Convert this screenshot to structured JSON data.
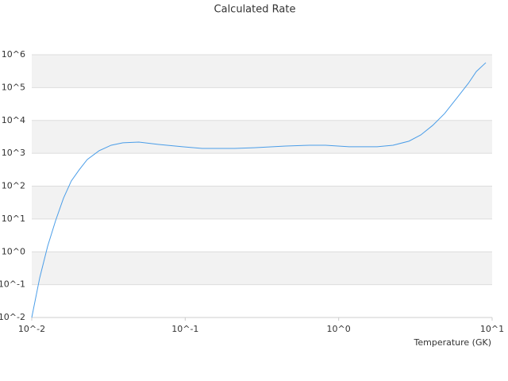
{
  "chart_data": {
    "type": "line",
    "title": "Calculated Rate",
    "x_label": "Temperature (GK)",
    "x": [
      0.01,
      0.01127,
      0.0127,
      0.0143,
      0.0161,
      0.0181,
      0.0204,
      0.023,
      0.0275,
      0.0329,
      0.0393,
      0.0499,
      0.0673,
      0.0962,
      0.129,
      0.209,
      0.281,
      0.452,
      0.647,
      0.821,
      1.17,
      1.78,
      2.26,
      2.87,
      3.43,
      4.1,
      4.9,
      5.86,
      7.0,
      7.89,
      9.1
    ],
    "values": [
      0.01,
      0.162,
      1.5,
      8.9,
      43,
      144,
      316,
      646,
      1200,
      1760,
      2090,
      2190,
      1860,
      1580,
      1410,
      1410,
      1480,
      1660,
      1760,
      1760,
      1580,
      1580,
      1760,
      2340,
      3630,
      7080,
      16200,
      46800,
      135000,
      309000,
      575000
    ],
    "color": "#4a9de8",
    "xscale": "log",
    "yscale": "log",
    "xlim": [
      0.01,
      10
    ],
    "ylim": [
      0.01,
      1000000
    ],
    "xticks": [
      {
        "value": 0.01,
        "label": "10^-2"
      },
      {
        "value": 0.1,
        "label": "10^-1"
      },
      {
        "value": 1,
        "label": "10^0"
      },
      {
        "value": 10,
        "label": "10^1"
      }
    ],
    "yticks": [
      {
        "value": 0.01,
        "label": "10^-2"
      },
      {
        "value": 0.1,
        "label": "10^-1"
      },
      {
        "value": 1,
        "label": "10^0"
      },
      {
        "value": 10,
        "label": "10^1"
      },
      {
        "value": 100,
        "label": "10^2"
      },
      {
        "value": 1000,
        "label": "10^3"
      },
      {
        "value": 10000,
        "label": "10^4"
      },
      {
        "value": 100000,
        "label": "10^5"
      },
      {
        "value": 1000000,
        "label": "10^6"
      }
    ],
    "grid": true
  }
}
